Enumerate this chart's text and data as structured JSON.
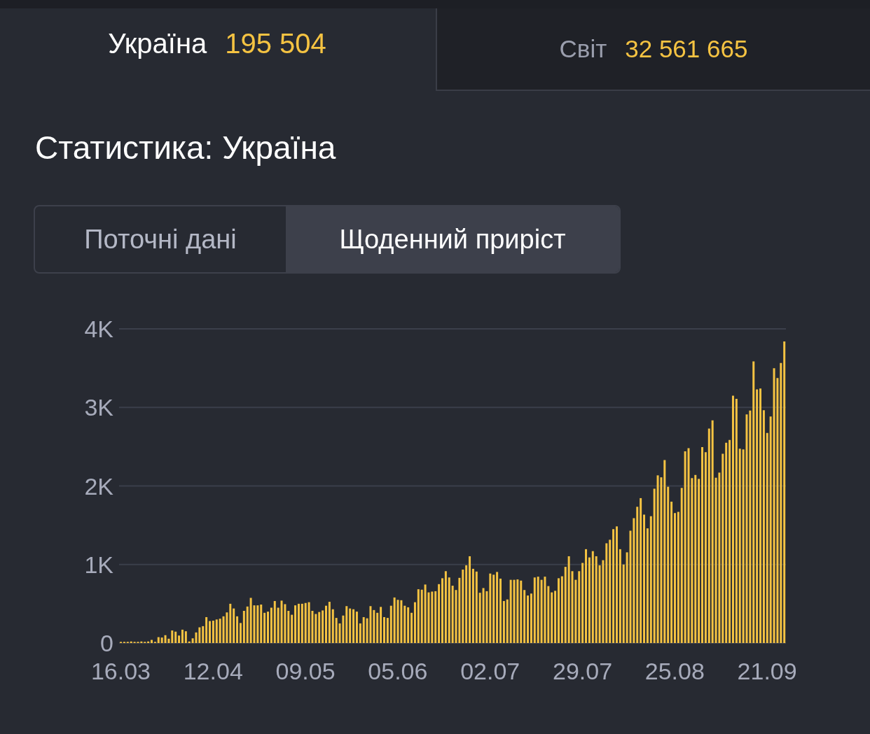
{
  "chart_data": {
    "type": "bar",
    "title": "Статистика: Україна",
    "annotations": [
      "Україна",
      "195 504",
      "Світ",
      "32 561 665",
      "Поточні дані",
      "Щоденний приріст"
    ],
    "categories": [
      "16.03",
      null,
      null,
      null,
      null,
      null,
      null,
      null,
      null,
      null,
      null,
      null,
      null,
      null,
      null,
      null,
      null,
      null,
      null,
      null,
      null,
      null,
      null,
      null,
      null,
      null,
      null,
      "12.04",
      null,
      null,
      null,
      null,
      null,
      null,
      null,
      null,
      null,
      null,
      null,
      null,
      null,
      null,
      null,
      null,
      null,
      null,
      null,
      null,
      null,
      null,
      null,
      null,
      null,
      null,
      "09.05",
      null,
      null,
      null,
      null,
      null,
      null,
      null,
      null,
      null,
      null,
      null,
      null,
      null,
      null,
      null,
      null,
      null,
      null,
      null,
      null,
      null,
      null,
      null,
      null,
      null,
      null,
      "05.06",
      null,
      null,
      null,
      null,
      null,
      null,
      null,
      null,
      null,
      null,
      null,
      null,
      null,
      null,
      null,
      null,
      null,
      null,
      null,
      null,
      null,
      null,
      null,
      null,
      null,
      null,
      "02.07",
      null,
      null,
      null,
      null,
      null,
      null,
      null,
      null,
      null,
      null,
      null,
      null,
      null,
      null,
      null,
      null,
      null,
      null,
      null,
      null,
      null,
      null,
      null,
      null,
      null,
      null,
      "29.07",
      null,
      null,
      null,
      null,
      null,
      null,
      null,
      null,
      null,
      null,
      null,
      null,
      null,
      null,
      null,
      null,
      null,
      null,
      null,
      null,
      null,
      null,
      null,
      null,
      null,
      null,
      "25.08",
      null,
      null,
      null,
      null,
      null,
      null,
      null,
      null,
      null,
      null,
      null,
      null,
      null,
      null,
      null,
      null,
      null,
      null,
      null,
      null,
      null,
      null,
      null,
      null,
      null,
      null,
      "21.09",
      null,
      null,
      null,
      null,
      null
    ],
    "values": [
      15,
      15,
      15,
      20,
      15,
      15,
      20,
      15,
      20,
      40,
      15,
      75,
      70,
      100,
      55,
      160,
      145,
      95,
      170,
      150,
      20,
      60,
      135,
      200,
      215,
      330,
      280,
      285,
      300,
      310,
      340,
      390,
      500,
      440,
      340,
      255,
      410,
      465,
      575,
      480,
      480,
      490,
      385,
      400,
      450,
      535,
      450,
      540,
      495,
      410,
      360,
      480,
      500,
      500,
      510,
      520,
      410,
      370,
      395,
      415,
      475,
      525,
      430,
      320,
      250,
      350,
      470,
      440,
      430,
      400,
      250,
      330,
      315,
      470,
      420,
      385,
      460,
      330,
      320,
      475,
      580,
      550,
      545,
      475,
      455,
      385,
      520,
      685,
      680,
      745,
      645,
      655,
      660,
      750,
      825,
      915,
      835,
      730,
      675,
      830,
      935,
      990,
      1105,
      945,
      910,
      640,
      700,
      660,
      885,
      870,
      905,
      820,
      535,
      555,
      805,
      805,
      810,
      795,
      675,
      605,
      630,
      835,
      845,
      805,
      845,
      725,
      645,
      665,
      825,
      850,
      970,
      1105,
      915,
      805,
      915,
      1020,
      1195,
      1090,
      1170,
      1105,
      990,
      1055,
      1270,
      1315,
      1450,
      1485,
      1195,
      1000,
      1155,
      1430,
      1590,
      1735,
      1845,
      1635,
      1460,
      1615,
      1965,
      2135,
      2110,
      2330,
      1990,
      1800,
      1655,
      1670,
      1975,
      2440,
      2480,
      2100,
      2140,
      2090,
      2495,
      2430,
      2730,
      2835,
      2105,
      2170,
      2410,
      2550,
      2585,
      3150,
      3110,
      2475,
      2465,
      2910,
      2960,
      3585,
      3230,
      3240,
      2965,
      2675,
      2885,
      3500,
      3375,
      3565,
      3840
    ],
    "color": "#f5c342",
    "ylim": [
      0,
      4000
    ],
    "yticks": [
      {
        "value": 0,
        "label": "0"
      },
      {
        "value": 1000,
        "label": "1K"
      },
      {
        "value": 2000,
        "label": "2K"
      },
      {
        "value": 3000,
        "label": "3K"
      },
      {
        "value": 4000,
        "label": "4K"
      }
    ],
    "grid": "y"
  }
}
